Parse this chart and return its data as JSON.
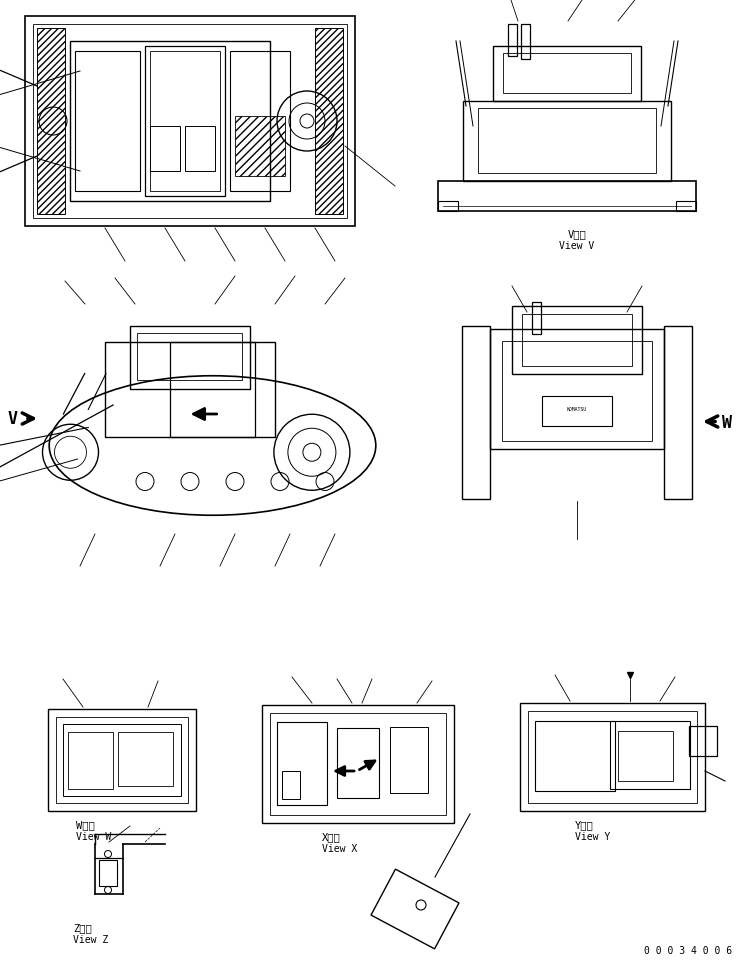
{
  "bg_color": "#ffffff",
  "fig_width": 7.39,
  "fig_height": 9.62,
  "dpi": 100,
  "page_number": "0 0 0 3 4 0 0 6",
  "line_color": "#000000",
  "font_family": "monospace",
  "view_labels": {
    "V": [
      "V　視",
      "View V"
    ],
    "W": [
      "W　視",
      "View W"
    ],
    "X": [
      "X　視",
      "View X"
    ],
    "Y": [
      "Y　視",
      "View Y"
    ],
    "Z": [
      "Z　視",
      "View Z"
    ]
  }
}
